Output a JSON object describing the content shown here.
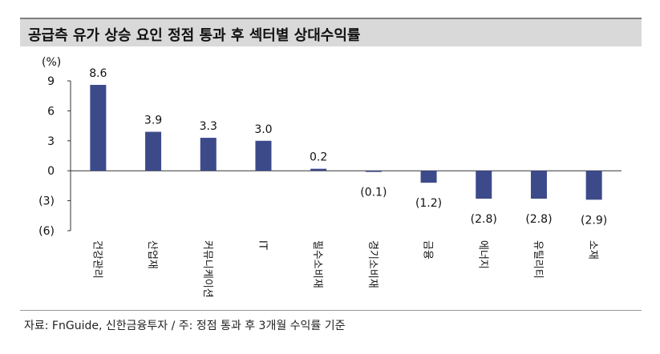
{
  "chart_data": {
    "type": "bar",
    "title": "공급측 유가 상승 요인 정점 통과 후 섹터별 상대수익률",
    "ylabel": "(%)",
    "categories": [
      "건강관리",
      "산업재",
      "커뮤니케이션",
      "IT",
      "필수소비재",
      "경기소비재",
      "금융",
      "에너지",
      "유틸리티",
      "소재"
    ],
    "values": [
      8.6,
      3.9,
      3.3,
      3.0,
      0.2,
      -0.1,
      -1.2,
      -2.8,
      -2.8,
      -2.9
    ],
    "data_labels": [
      "8.6",
      "3.9",
      "3.3",
      "3.0",
      "0.2",
      "(0.1)",
      "(1.2)",
      "(2.8)",
      "(2.8)",
      "(2.9)"
    ],
    "ylim": [
      -6,
      9
    ],
    "yticks": [
      9,
      6,
      3,
      0,
      -3,
      -6
    ],
    "ytick_labels": [
      "9",
      "6",
      "3",
      "0",
      "(3)",
      "(6)"
    ],
    "grid": false,
    "bar_color": "#3d4a8a"
  },
  "source": "자료: FnGuide, 신한금융투자 / 주: 정점 통과 후 3개월 수익률 기준"
}
